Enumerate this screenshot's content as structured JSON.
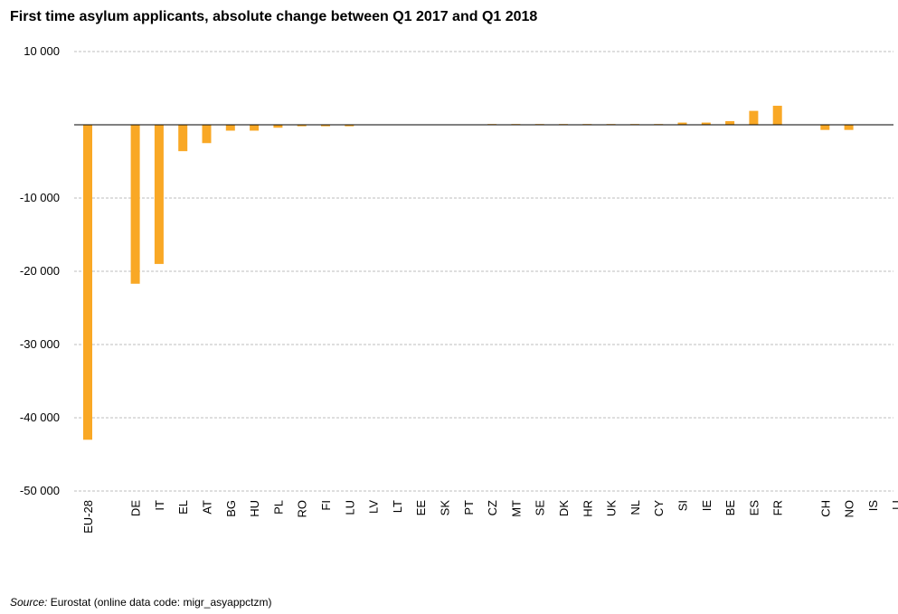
{
  "chart_data": {
    "type": "bar",
    "title": "First time asylum applicants, absolute change between Q1 2017 and Q1 2018",
    "xlabel": "",
    "ylabel": "",
    "ylim": [
      -50000,
      10000
    ],
    "yticks": [
      10000,
      0,
      -10000,
      -20000,
      -30000,
      -40000,
      -50000
    ],
    "ytick_labels": [
      "10 000",
      "",
      "-10 000",
      "-20 000",
      "-30 000",
      "-40 000",
      "-50 000"
    ],
    "grid": true,
    "color": "#F9A825",
    "categories": [
      "EU-28",
      "",
      "DE",
      "IT",
      "EL",
      "AT",
      "BG",
      "HU",
      "PL",
      "RO",
      "FI",
      "LU",
      "LV",
      "LT",
      "EE",
      "SK",
      "PT",
      "CZ",
      "MT",
      "SE",
      "DK",
      "HR",
      "UK",
      "NL",
      "CY",
      "SI",
      "IE",
      "BE",
      "ES",
      "FR",
      "",
      "CH",
      "NO",
      "IS",
      "LI"
    ],
    "values": [
      -43000,
      null,
      -21700,
      -19000,
      -3600,
      -2500,
      -800,
      -800,
      -400,
      -200,
      -200,
      -200,
      0,
      0,
      0,
      0,
      0,
      100,
      100,
      100,
      100,
      100,
      100,
      100,
      100,
      300,
      300,
      500,
      1900,
      2600,
      null,
      -700,
      -700,
      0,
      0
    ]
  },
  "source": {
    "label": "Source:",
    "text": "Eurostat (online data code: migr_asyappctzm)"
  }
}
